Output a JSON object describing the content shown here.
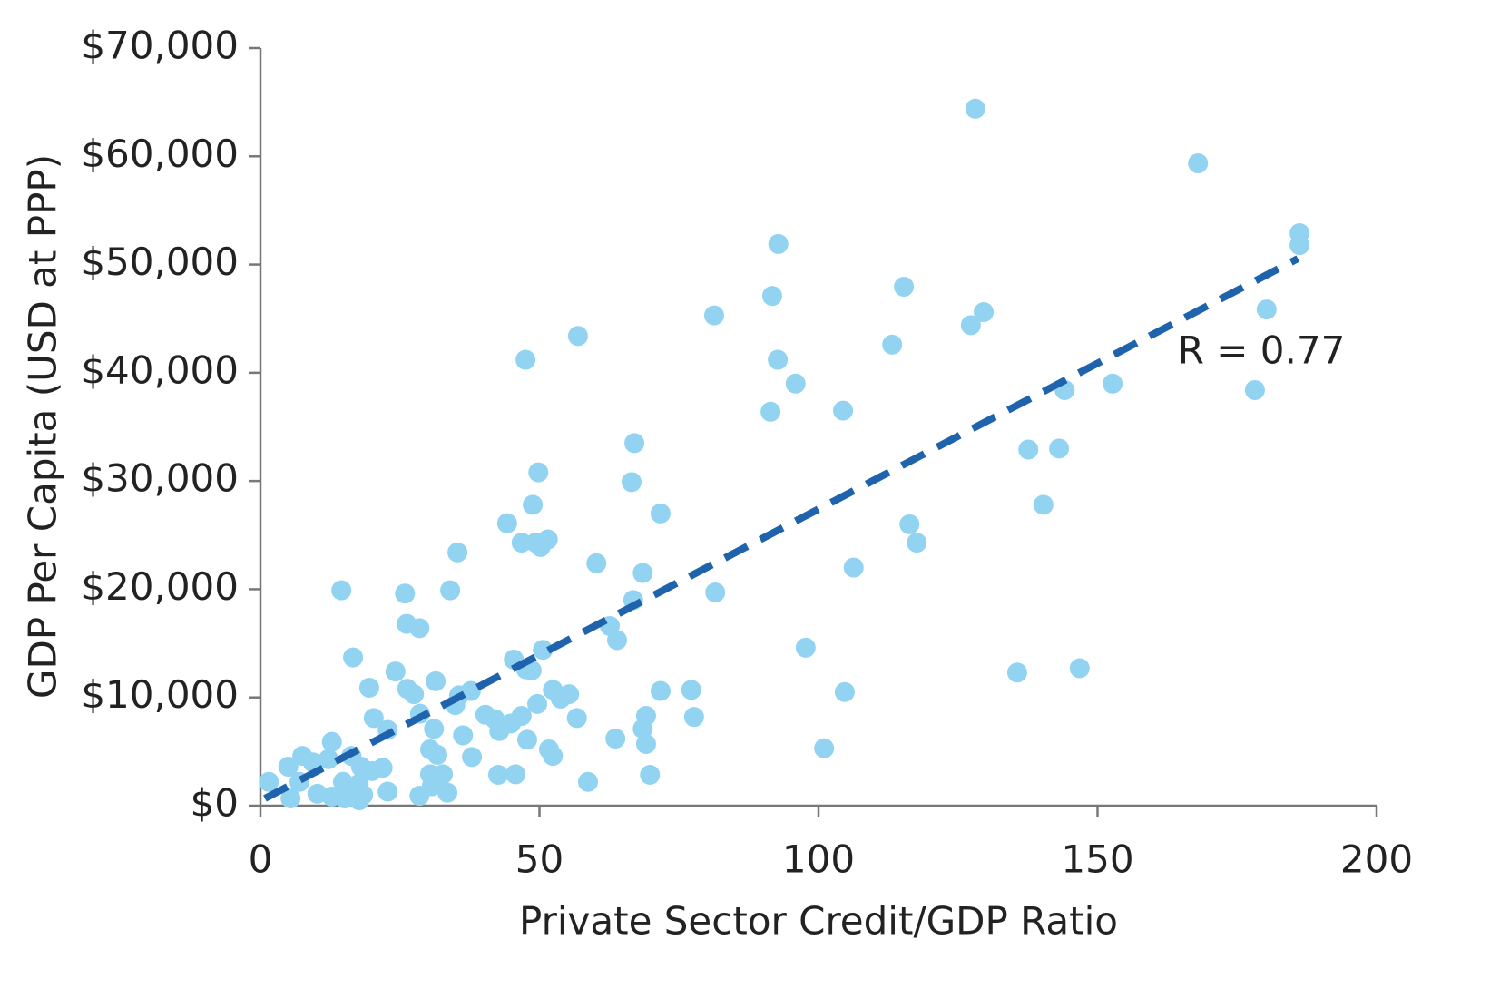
{
  "chart_data": {
    "type": "scatter",
    "xlabel": "Private Sector Credit/GDP Ratio",
    "ylabel": "GDP Per Capita (USD at PPP)",
    "annotation": "R = 0.77",
    "color": "#92d3f2",
    "xlim": [
      0,
      200
    ],
    "xticks": [
      0,
      50,
      100,
      150,
      200
    ],
    "ylim": [
      0,
      70000
    ],
    "yticks": [
      {
        "value": 0,
        "label": "$0"
      },
      {
        "value": 10000,
        "label": "$10,000"
      },
      {
        "value": 20000,
        "label": "$20,000"
      },
      {
        "value": 30000,
        "label": "$30,000"
      },
      {
        "value": 40000,
        "label": "$40,000"
      },
      {
        "value": 50000,
        "label": "$50,000"
      },
      {
        "value": 60000,
        "label": "$60,000"
      },
      {
        "value": 70000,
        "label": "$70,000"
      }
    ],
    "trendline": {
      "color": "#1f63ad",
      "x": [
        0.8,
        185.9
      ],
      "y": [
        670,
        50550
      ]
    },
    "x": [
      128.1,
      168,
      186.2,
      186.2,
      92.8,
      81.3,
      91.7,
      115.3,
      127.3,
      129.6,
      180.3,
      56.9,
      47.5,
      92.7,
      113.2,
      95.9,
      144.1,
      152.7,
      178.2,
      91.4,
      104.4,
      137.6,
      143.1,
      67,
      49.8,
      66.5,
      48.8,
      140.3,
      71.7,
      44.2,
      116.3,
      46.8,
      49.3,
      50.2,
      51.5,
      117.6,
      35.3,
      60.2,
      106.3,
      68.5,
      14.5,
      25.9,
      34,
      66.8,
      81.5,
      26.2,
      28.5,
      62.6,
      63.9,
      97.7,
      16.6,
      45.4,
      50.6,
      47.6,
      48.6,
      24.2,
      135.6,
      146.8,
      31.4,
      19.5,
      26.3,
      27.5,
      35.6,
      37.7,
      52.4,
      55.3,
      53.8,
      71.7,
      77.2,
      104.7,
      34.9,
      49.6,
      28.6,
      40.3,
      42,
      46.8,
      69.1,
      77.7,
      20.3,
      56.7,
      31.1,
      44.9,
      42.8,
      22.8,
      68.5,
      36.3,
      47.8,
      63.6,
      12.8,
      69.1,
      101,
      30.4,
      51.7,
      52.4,
      31.7,
      37.9,
      7.5,
      9.4,
      12.2,
      16.3,
      5,
      18,
      21.9,
      20,
      30.4,
      32.7,
      42.6,
      45.7,
      69.8,
      1.5,
      7,
      14.8,
      58.7,
      17.6,
      30.7,
      33.5,
      22.8,
      10.2,
      12.8,
      16.4,
      18.4,
      28.5,
      5.4,
      15.1,
      17.7
    ],
    "y": [
      64400,
      59350,
      52900,
      51800,
      51900,
      45300,
      47100,
      47950,
      44400,
      45600,
      45850,
      43400,
      41200,
      41200,
      42600,
      39000,
      38400,
      39000,
      38400,
      36400,
      36500,
      32900,
      33000,
      33500,
      30800,
      29900,
      27800,
      27800,
      27000,
      26100,
      26000,
      24300,
      24300,
      23900,
      24600,
      24300,
      23400,
      22400,
      22000,
      21500,
      19900,
      19600,
      19900,
      19000,
      19700,
      16800,
      16400,
      16600,
      15300,
      14600,
      13700,
      13500,
      14400,
      12600,
      12500,
      12400,
      12300,
      12700,
      11500,
      10900,
      10800,
      10300,
      10200,
      10600,
      10700,
      10300,
      9900,
      10600,
      10700,
      10500,
      9300,
      9400,
      8500,
      8400,
      8000,
      8300,
      8300,
      8200,
      8100,
      8100,
      7100,
      7600,
      6900,
      7000,
      7100,
      6500,
      6100,
      6200,
      5900,
      5700,
      5300,
      5200,
      5200,
      4600,
      4700,
      4500,
      4600,
      4000,
      4300,
      4600,
      3600,
      3600,
      3500,
      3200,
      2900,
      2900,
      2850,
      2900,
      2850,
      2200,
      2200,
      2200,
      2200,
      2000,
      1800,
      1200,
      1300,
      1100,
      840,
      840,
      1000,
      920,
      670,
      670,
      500
    ]
  }
}
